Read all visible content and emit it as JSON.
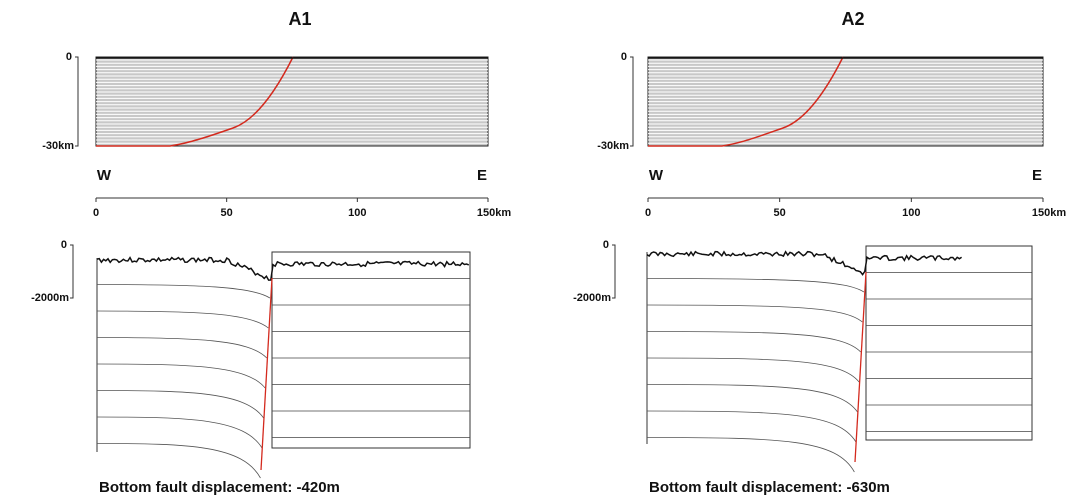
{
  "panels": [
    {
      "title": "A1",
      "section_axis": {
        "top": "0",
        "bottom": "-30km"
      },
      "west": "W",
      "east": "E",
      "distance_ticks": [
        "0",
        "50",
        "100",
        "150km"
      ],
      "profile_axis": {
        "top": "0",
        "bottom": "-2000m"
      },
      "caption": "Bottom fault displacement: -420m"
    },
    {
      "title": "A2",
      "section_axis": {
        "top": "0",
        "bottom": "-30km"
      },
      "west": "W",
      "east": "E",
      "distance_ticks": [
        "0",
        "50",
        "100",
        "150km"
      ],
      "profile_axis": {
        "top": "0",
        "bottom": "-2000m"
      },
      "caption": "Bottom fault displacement: -630m"
    }
  ]
}
